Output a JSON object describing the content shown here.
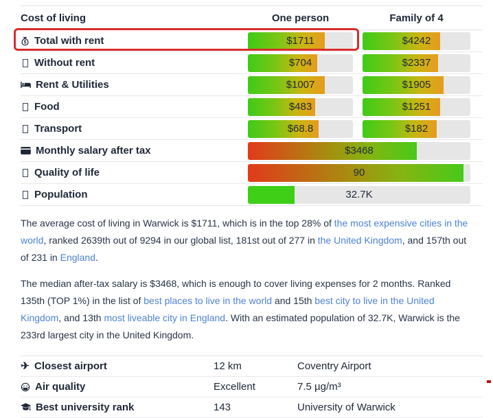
{
  "cost_table": {
    "col_product": "Cost of living",
    "col_one_person": "One person",
    "col_family": "Family of 4",
    "rows": [
      {
        "icon": "money-bag",
        "label": "Total with rent",
        "one_person_value": "$1711",
        "one_person_fill": 73,
        "family_value": "$4242",
        "family_fill": 72
      },
      {
        "icon": "tofu",
        "label": "Without rent",
        "one_person_value": "$704",
        "one_person_fill": 66,
        "family_value": "$2337",
        "family_fill": 70
      },
      {
        "icon": "bed",
        "label": "Rent & Utilities",
        "one_person_value": "$1007",
        "one_person_fill": 73,
        "family_value": "$1905",
        "family_fill": 75
      },
      {
        "icon": "tofu",
        "label": "Food",
        "one_person_value": "$483",
        "one_person_fill": 64,
        "family_value": "$1251",
        "family_fill": 72
      },
      {
        "icon": "tofu",
        "label": "Transport",
        "one_person_value": "$68.8",
        "one_person_fill": 67,
        "family_value": "$182",
        "family_fill": 69
      }
    ],
    "wide_rows": [
      {
        "icon": "credit-card",
        "label": "Monthly salary after tax",
        "value": "$3468",
        "fill": 76,
        "style": "salary"
      },
      {
        "icon": "tofu",
        "label": "Quality of life",
        "value": "90",
        "fill": 97,
        "style": "salary"
      },
      {
        "icon": "tofu",
        "label": "Population",
        "value": "32.7K",
        "fill": 21,
        "style": "solid"
      }
    ]
  },
  "paragraphs": [
    {
      "segments": [
        {
          "text": "The average cost of living in Warwick is $1711, which is in the top 28% of "
        },
        {
          "text": "the most expensive cities in the world",
          "link": true
        },
        {
          "text": ", ranked 2639th out of 9294 in our global list, 181st out of 277 in "
        },
        {
          "text": "the United Kingdom",
          "link": true
        },
        {
          "text": ", and 157th out of 231 in "
        },
        {
          "text": "England",
          "link": true
        },
        {
          "text": "."
        }
      ]
    },
    {
      "segments": [
        {
          "text": "The median after-tax salary is $3468, which is enough to cover living expenses for 2 months. Ranked 135th (TOP 1%) in the list of "
        },
        {
          "text": "best places to live in the world",
          "link": true
        },
        {
          "text": " and 15th "
        },
        {
          "text": "best city to live in the United Kingdom",
          "link": true
        },
        {
          "text": ", and 13th "
        },
        {
          "text": "most liveable city in England",
          "link": true
        },
        {
          "text": ". With an estimated population of 32.7K, Warwick is the 233rd largest city in the United Kingdom."
        }
      ]
    }
  ],
  "info_table": {
    "rows": [
      {
        "icon": "plane",
        "label": "Closest airport",
        "value": "12 km",
        "detail": "Coventry Airport"
      },
      {
        "icon": "mask-face",
        "label": "Air quality",
        "value": "Excellent",
        "detail": "7.5 µg/m³"
      },
      {
        "icon": "grad-cap",
        "label": "Best university rank",
        "value": "143",
        "detail": "University of Warwick"
      }
    ]
  },
  "annotation": {
    "highlighted_row": "Total with rent"
  },
  "colors": {
    "bar_track": "#e6e6e6",
    "cost_gradient_start": "#3ecb17",
    "cost_gradient_end": "#e69b1e",
    "salary_gradient_start": "#e23a1b",
    "salary_gradient_end": "#47ca18",
    "population_fill": "#3fcf17",
    "link": "#4d82d4",
    "text": "#1d2736",
    "annotation_red": "#d92b2b"
  }
}
